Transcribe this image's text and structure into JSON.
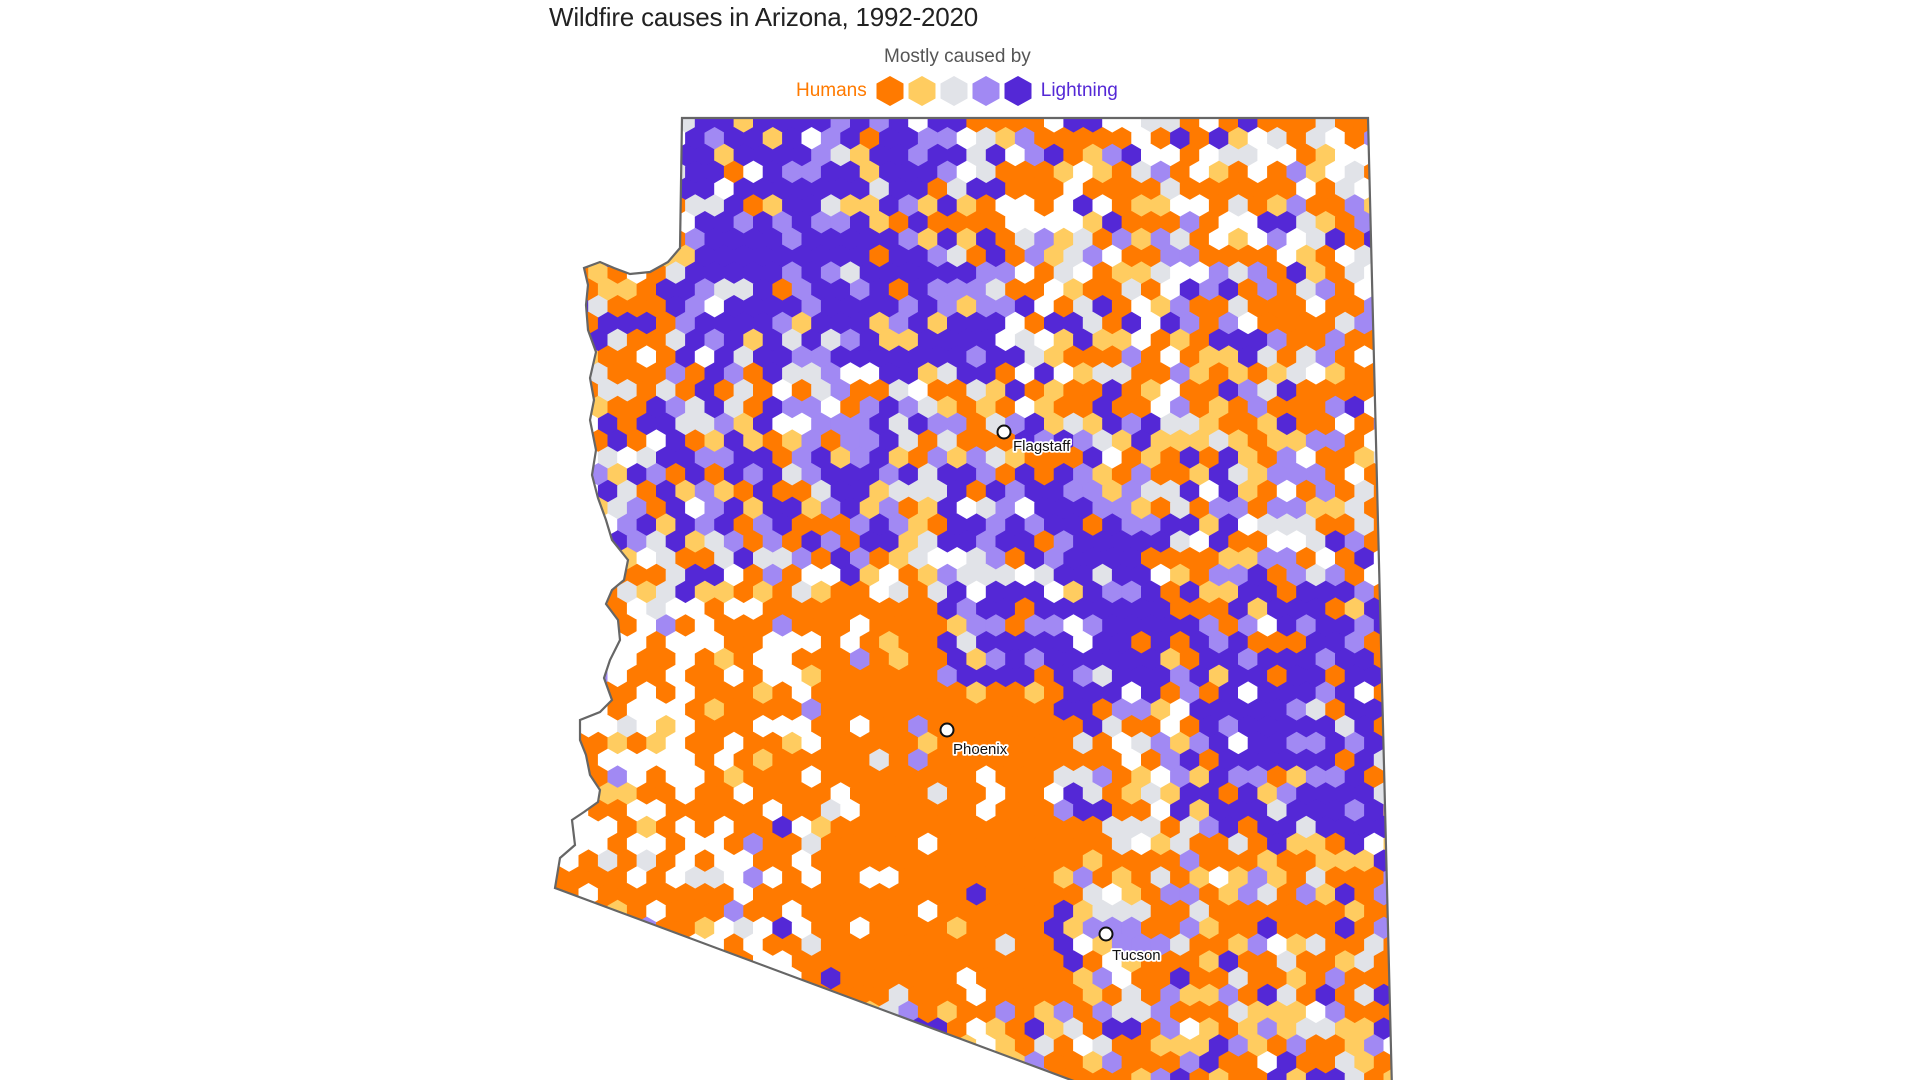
{
  "title": "Wildfire causes in Arizona, 1992-2020",
  "legend": {
    "caption": "Mostly caused by",
    "left_label": "Humans",
    "right_label": "Lightning",
    "left_color": "#ff7a00",
    "right_color": "#5428d6",
    "swatches": [
      {
        "category": "humans",
        "color": "#ff7a00"
      },
      {
        "category": "mostly-humans",
        "color": "#ffcc60"
      },
      {
        "category": "mixed",
        "color": "#e1e3e8"
      },
      {
        "category": "mostly-lightning",
        "color": "#a189f3"
      },
      {
        "category": "lightning",
        "color": "#5428d6"
      }
    ]
  },
  "map": {
    "region": "Arizona",
    "cell_shape": "hexagon",
    "cities": [
      {
        "name": "Flagstaff"
      },
      {
        "name": "Phoenix"
      },
      {
        "name": "Tucson"
      }
    ]
  }
}
